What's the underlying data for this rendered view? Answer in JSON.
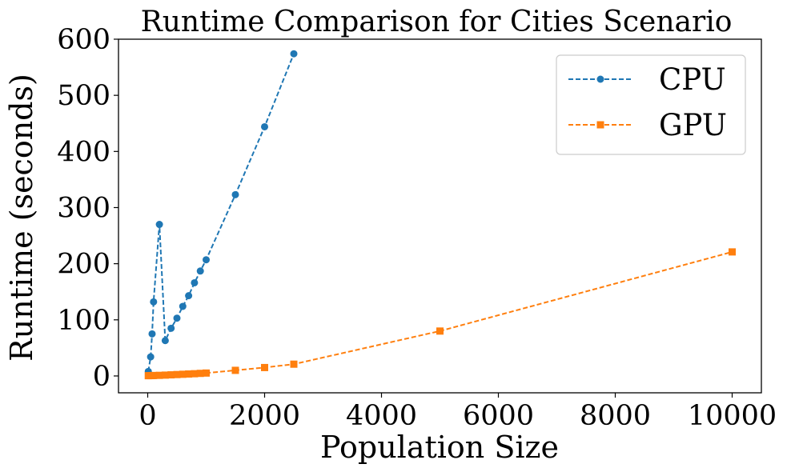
{
  "chart_data": {
    "type": "line",
    "title": "Runtime Comparison for Cities Scenario",
    "xlabel": "Population Size",
    "ylabel": "Runtime (seconds)",
    "xlim": [
      -500,
      10500
    ],
    "ylim": [
      -30,
      600
    ],
    "xticks": [
      0,
      2000,
      4000,
      6000,
      8000,
      10000
    ],
    "yticks": [
      0,
      100,
      200,
      300,
      400,
      500,
      600
    ],
    "grid": false,
    "legend_position": "top-right",
    "series": [
      {
        "name": "CPU",
        "color": "#1f77b4",
        "marker": "circle",
        "linestyle": "dashed",
        "x": [
          10,
          50,
          75,
          100,
          200,
          300,
          400,
          500,
          600,
          700,
          800,
          900,
          1000,
          1500,
          2000,
          2500
        ],
        "y": [
          8,
          34,
          75,
          132,
          270,
          63,
          85,
          103,
          124,
          143,
          166,
          187,
          207,
          323,
          444,
          574
        ]
      },
      {
        "name": "GPU",
        "color": "#ff7f0e",
        "marker": "square",
        "linestyle": "dashed",
        "x": [
          10,
          50,
          75,
          100,
          200,
          300,
          400,
          500,
          600,
          700,
          800,
          900,
          1000,
          1500,
          2000,
          2500,
          5000,
          10000
        ],
        "y": [
          0.5,
          0.6,
          0.7,
          0.8,
          1.1,
          1.5,
          2,
          2.5,
          3,
          3.5,
          4,
          4.6,
          5.2,
          10,
          15,
          21,
          80,
          221
        ]
      }
    ]
  }
}
